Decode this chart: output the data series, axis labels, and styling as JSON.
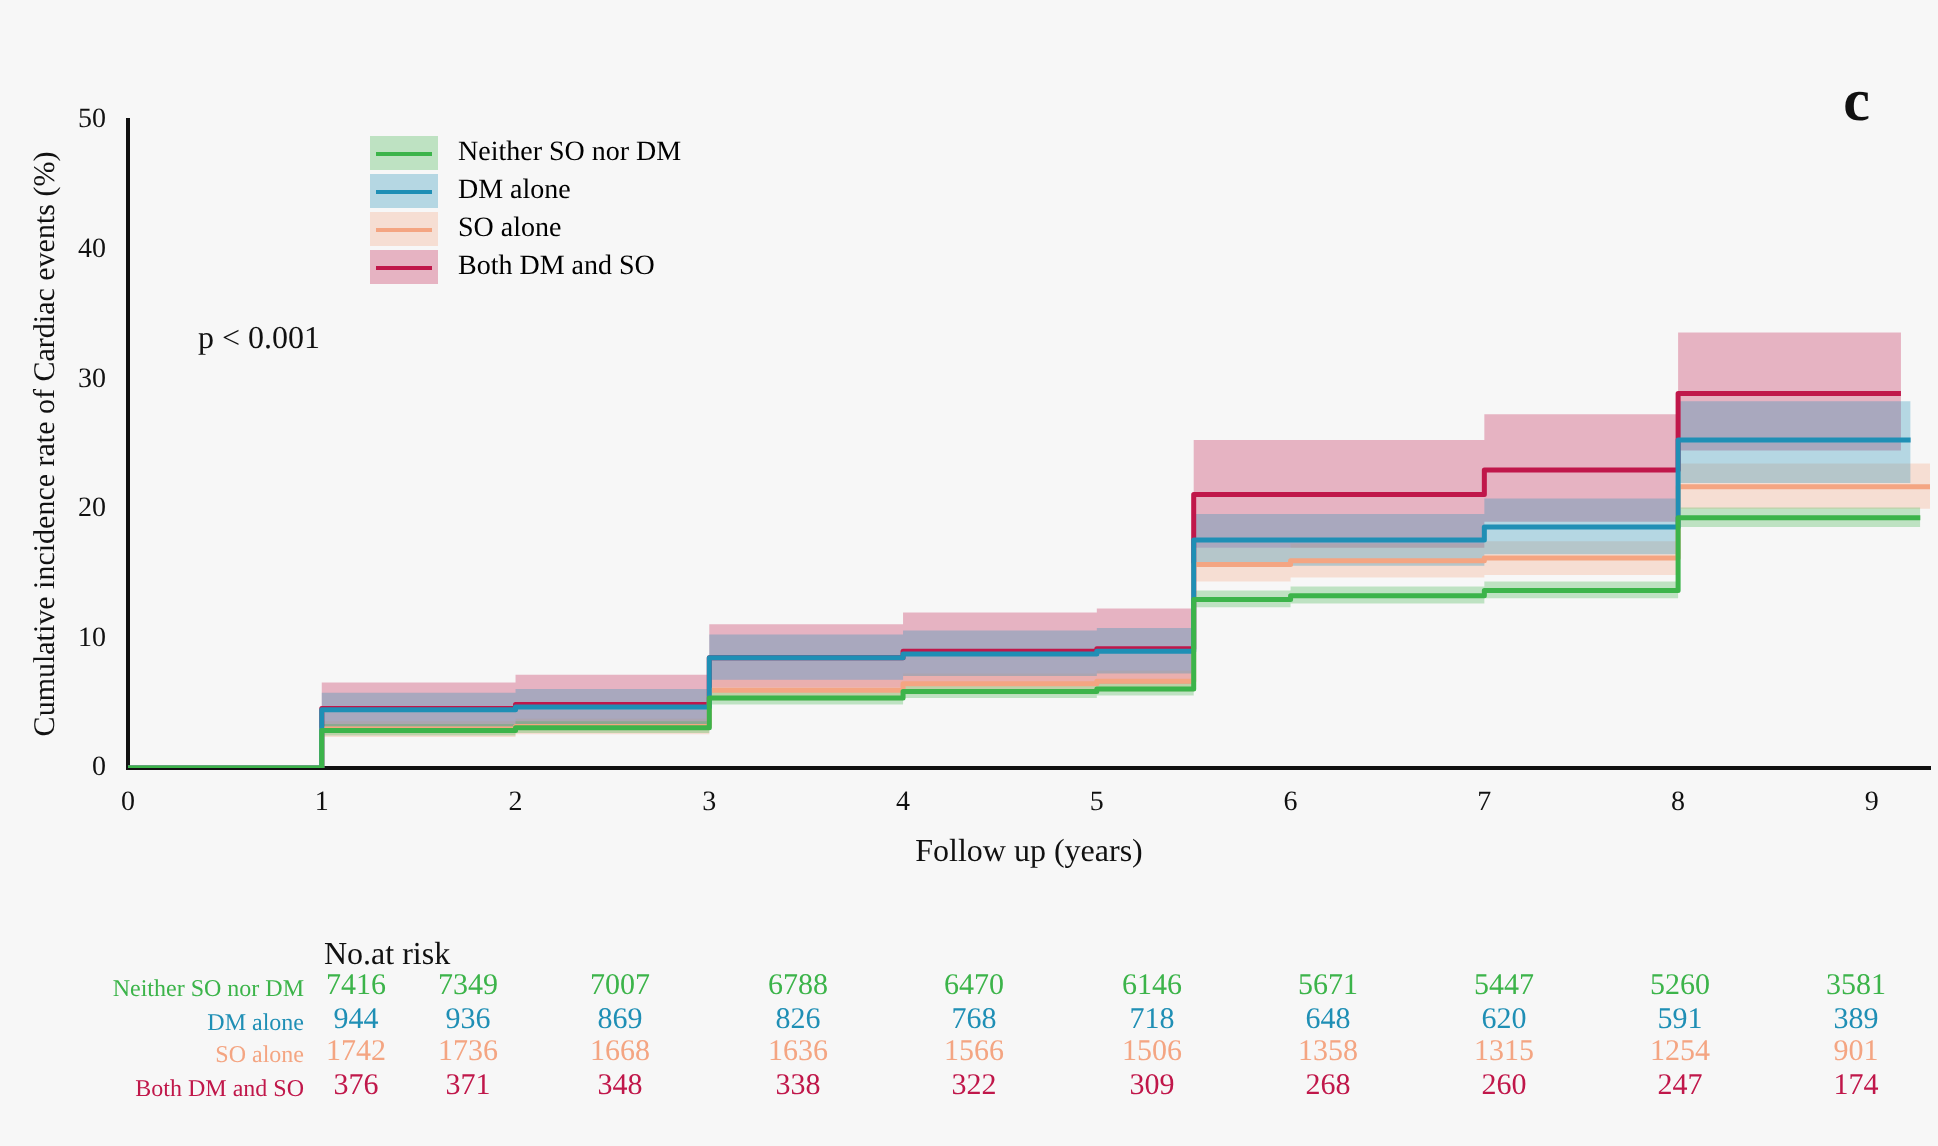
{
  "chart_data": {
    "type": "step",
    "title": "c",
    "xlabel": "Follow up (years)",
    "ylabel": "Cumulative incidence rate of Cardiac events (%)",
    "xlim": [
      0,
      9.3
    ],
    "xticks": [
      0,
      1,
      2,
      3,
      4,
      5,
      6,
      7,
      8,
      9
    ],
    "ylim": [
      0,
      50
    ],
    "yticks": [
      0,
      10,
      20,
      30,
      40,
      50
    ],
    "grid": false,
    "legend": "top left",
    "series": [
      {
        "name": "Neither SO nor DM",
        "color": "#3cb44a",
        "x": [
          0,
          1,
          2,
          3,
          4,
          5,
          5.5,
          6,
          7,
          8,
          9.25
        ],
        "values": [
          0,
          2.9,
          3.1,
          5.4,
          5.9,
          6.1,
          13.0,
          13.3,
          13.7,
          19.3,
          19.3
        ],
        "lower": [
          0,
          2.5,
          2.7,
          4.9,
          5.4,
          5.6,
          12.4,
          12.7,
          13.1,
          18.6,
          18.6
        ],
        "upper": [
          0,
          3.4,
          3.6,
          5.9,
          6.4,
          6.6,
          13.7,
          14.0,
          14.4,
          20.1,
          20.1
        ]
      },
      {
        "name": "DM  alone",
        "color": "#1f8fb5",
        "x": [
          0,
          1,
          2,
          3,
          4,
          5,
          5.5,
          7,
          8,
          9.2
        ],
        "values": [
          0,
          4.5,
          4.7,
          8.5,
          8.8,
          9.0,
          17.6,
          18.6,
          25.3,
          25.3
        ],
        "lower": [
          0,
          3.2,
          3.4,
          6.8,
          7.1,
          7.3,
          15.6,
          16.5,
          22.0,
          22.0
        ],
        "upper": [
          0,
          5.8,
          6.1,
          10.3,
          10.6,
          10.8,
          19.6,
          20.8,
          28.3,
          28.3
        ]
      },
      {
        "name": "SO alone",
        "color": "#f4a582",
        "x": [
          0,
          1,
          2,
          3,
          4,
          5,
          5.5,
          6,
          7,
          8,
          9.3
        ],
        "values": [
          0,
          3.0,
          3.2,
          6.0,
          6.5,
          6.7,
          15.7,
          16.0,
          16.2,
          21.7,
          21.7
        ],
        "lower": [
          0,
          2.4,
          2.6,
          5.2,
          5.7,
          5.9,
          14.4,
          14.7,
          14.9,
          20.0,
          20.0
        ],
        "upper": [
          0,
          3.6,
          3.8,
          6.8,
          7.3,
          7.5,
          17.0,
          17.3,
          17.5,
          23.5,
          23.5
        ]
      },
      {
        "name": "Both DM and SO",
        "color": "#c0174a",
        "x": [
          0,
          1,
          2,
          3,
          4,
          5,
          5.5,
          7,
          8,
          9.15
        ],
        "values": [
          0,
          4.6,
          4.9,
          8.5,
          9.0,
          9.2,
          21.1,
          23.0,
          28.9,
          28.9
        ],
        "lower": [
          0,
          2.8,
          3.0,
          6.2,
          6.4,
          6.5,
          17.0,
          19.0,
          24.5,
          24.5
        ],
        "upper": [
          0,
          6.6,
          7.2,
          11.1,
          12.0,
          12.3,
          25.3,
          27.3,
          33.6,
          33.6
        ]
      }
    ],
    "annotations": [
      "p < 0.001",
      "No.at risk",
      "Neither SO nor DM",
      "7416",
      "7349",
      "7007",
      "6788",
      "6470",
      "6146",
      "5671",
      "5447",
      "5260",
      "3581",
      "DM alone",
      "944",
      "936",
      "869",
      "826",
      "768",
      "718",
      "648",
      "620",
      "591",
      "389",
      "SO alone",
      "1742",
      "1736",
      "1668",
      "1636",
      "1566",
      "1506",
      "1358",
      "1315",
      "1254",
      "901",
      "Both DM and SO",
      "376",
      "371",
      "348",
      "338",
      "322",
      "309",
      "268",
      "260",
      "247",
      "174"
    ]
  }
}
